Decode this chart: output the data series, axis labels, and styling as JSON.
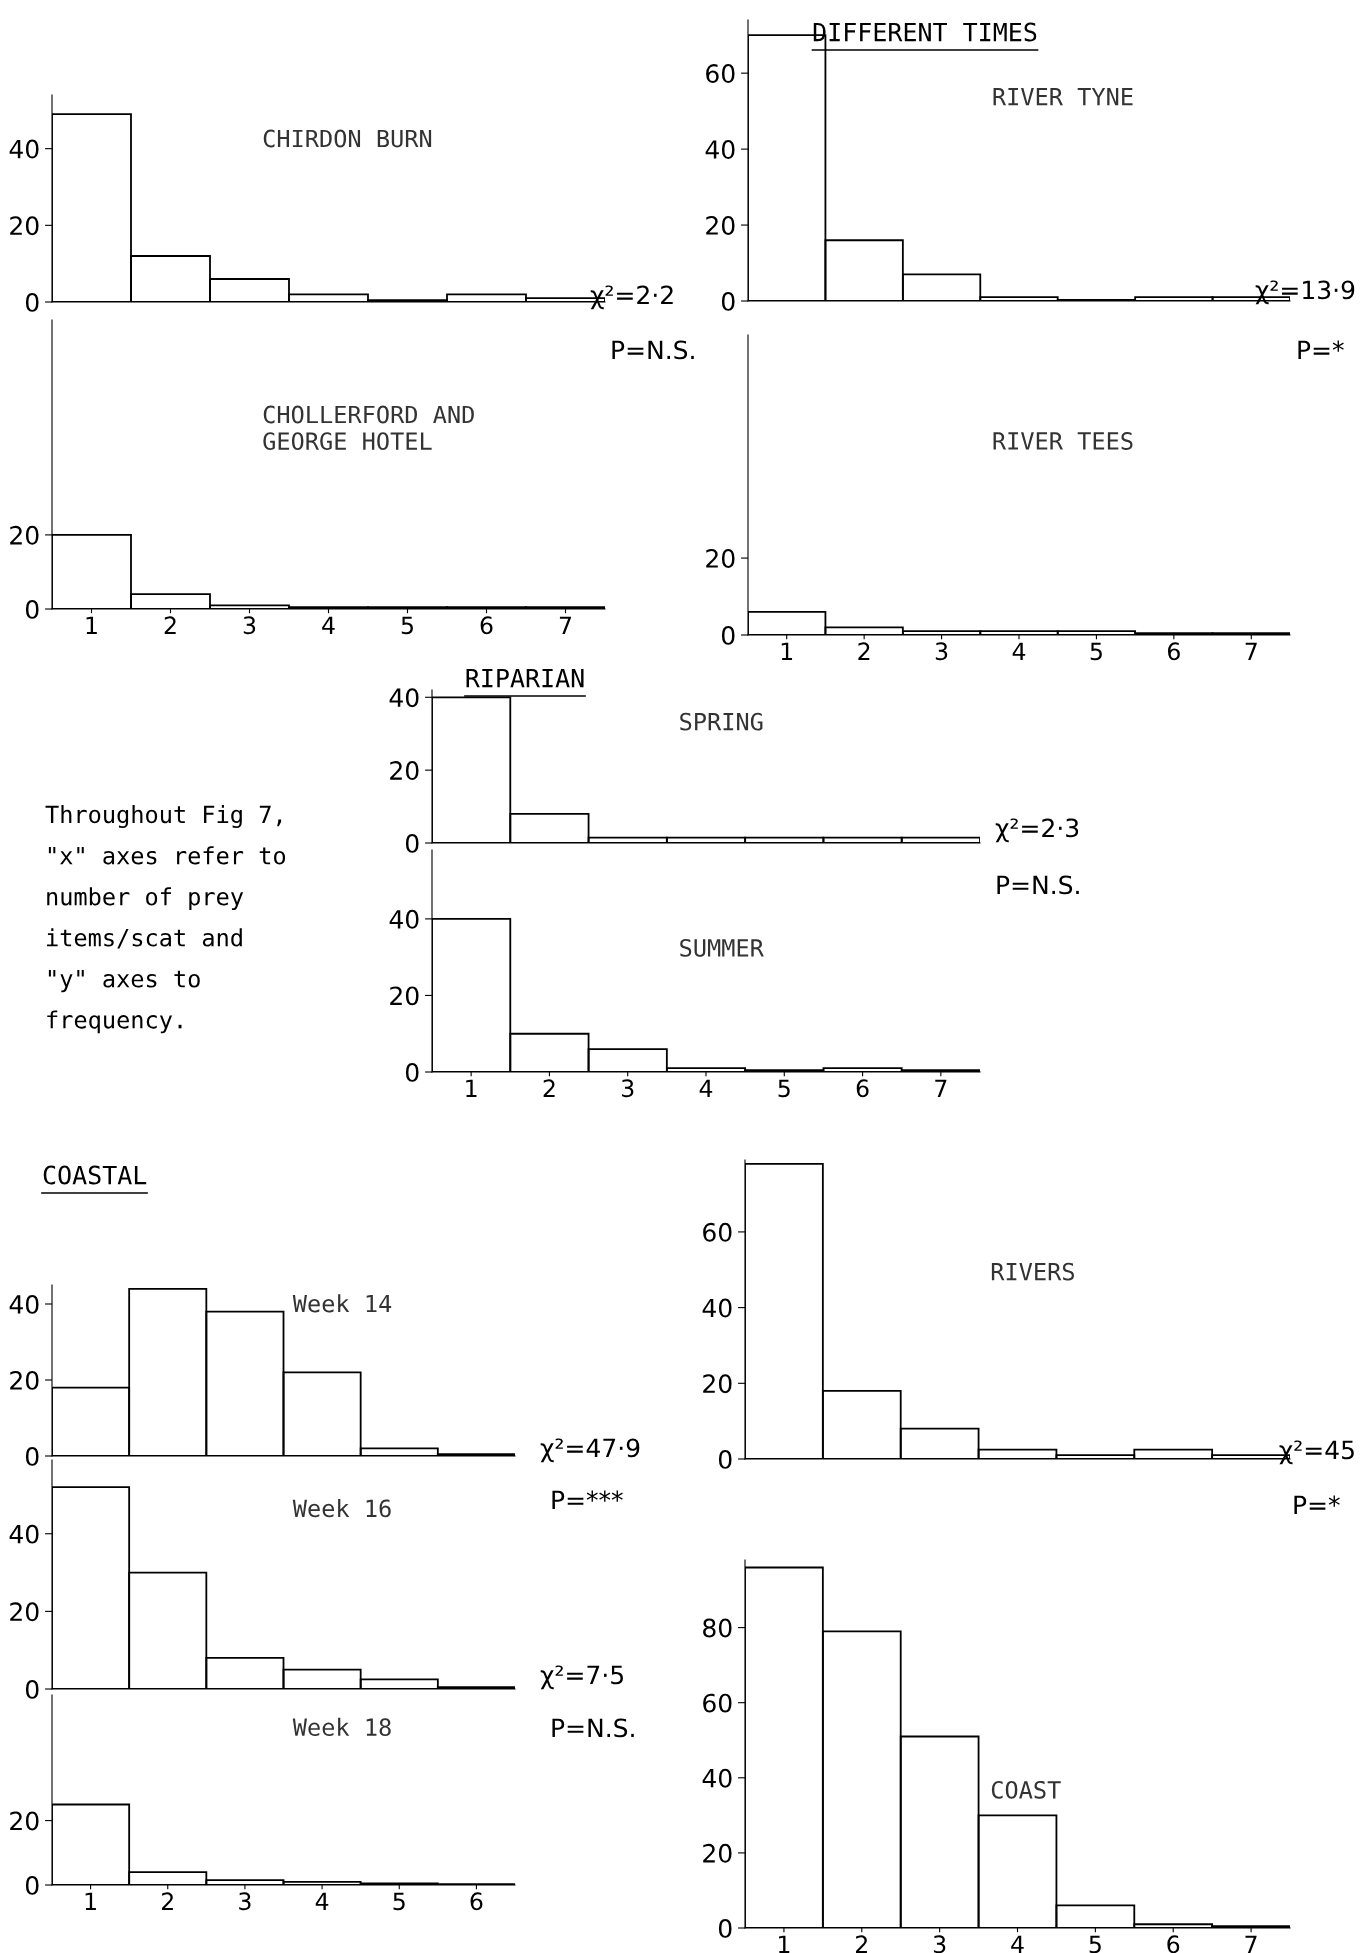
{
  "chart_data": [
    {
      "type": "bar",
      "title": "CHIRDON BURN",
      "categories": [
        "1",
        "2",
        "3",
        "4",
        "5",
        "6",
        "7"
      ],
      "values": [
        49,
        12,
        6,
        2,
        0.5,
        2,
        1
      ],
      "color": "#000000",
      "ylim": [
        0,
        54
      ],
      "yticks": [
        0,
        20,
        40
      ],
      "tick_labels": "y",
      "grid": false,
      "legend": false,
      "annotations": [
        "χ²=2·2",
        "P=N.S."
      ]
    },
    {
      "type": "bar",
      "title": "RIVER TYNE",
      "categories": [
        "1",
        "2",
        "3",
        "4",
        "5",
        "6",
        "7"
      ],
      "values": [
        70,
        16,
        7,
        1,
        0.3,
        1,
        1
      ],
      "color": "#000000",
      "ylim": [
        0,
        74
      ],
      "yticks": [
        0,
        20,
        40,
        60
      ],
      "tick_labels": "y",
      "grid": false,
      "legend": false,
      "annotations": [
        "DIFFERENT TIMES",
        "χ²=13·9",
        "P=*"
      ]
    },
    {
      "type": "bar",
      "title": "CHOLLERFORD AND\nGEORGE HOTEL",
      "categories": [
        "1",
        "2",
        "3",
        "4",
        "5",
        "6",
        "7"
      ],
      "values": [
        20,
        4,
        1,
        0.5,
        0.5,
        0.5,
        0.5
      ],
      "color": "#000000",
      "ylim": [
        0,
        78
      ],
      "yticks": [
        0,
        20
      ],
      "grid": false,
      "legend": false
    },
    {
      "type": "bar",
      "title": "RIVER TEES",
      "categories": [
        "1",
        "2",
        "3",
        "4",
        "5",
        "6",
        "7"
      ],
      "values": [
        6,
        2,
        1,
        1,
        1,
        0.5,
        0.5
      ],
      "color": "#000000",
      "ylim": [
        0,
        78
      ],
      "yticks": [
        0,
        20
      ],
      "grid": false,
      "legend": false
    },
    {
      "type": "bar",
      "title": "SPRING",
      "categories": [
        "1",
        "2",
        "3",
        "4",
        "5",
        "6",
        "7"
      ],
      "values": [
        40,
        8,
        1.5,
        1.5,
        1.5,
        1.5,
        1.5
      ],
      "color": "#000000",
      "ylim": [
        0,
        42
      ],
      "yticks": [
        0,
        20,
        40
      ],
      "tick_labels": "y",
      "grid": false,
      "legend": false,
      "annotations": [
        "RIPARIAN",
        "χ²=2·3",
        "P=N.S.",
        "Throughout Fig 7,\n\"x\" axes refer to\nnumber of prey\nitems/scat and\n\"y\" axes to\nfrequency."
      ]
    },
    {
      "type": "bar",
      "title": "SUMMER",
      "categories": [
        "1",
        "2",
        "3",
        "4",
        "5",
        "6",
        "7"
      ],
      "values": [
        40,
        10,
        6,
        1,
        0.5,
        1,
        0.5
      ],
      "color": "#000000",
      "ylim": [
        0,
        58
      ],
      "yticks": [
        0,
        20,
        40
      ],
      "grid": false,
      "legend": false
    },
    {
      "type": "bar",
      "title": "RIVERS",
      "categories": [
        "1",
        "2",
        "3",
        "4",
        "5",
        "6",
        "7"
      ],
      "values": [
        78,
        18,
        8,
        2.5,
        1,
        2.5,
        1
      ],
      "color": "#000000",
      "ylim": [
        0,
        79
      ],
      "yticks": [
        0,
        20,
        40,
        60
      ],
      "tick_labels": "y",
      "grid": false,
      "legend": false,
      "annotations": [
        "χ²=45",
        "P=*"
      ]
    },
    {
      "type": "bar",
      "title": "Week 14",
      "categories": [
        "1",
        "2",
        "3",
        "4",
        "5",
        "6"
      ],
      "values": [
        18,
        44,
        38,
        22,
        2,
        0.5
      ],
      "color": "#000000",
      "ylim": [
        0,
        45
      ],
      "yticks": [
        0,
        20,
        40
      ],
      "tick_labels": "y",
      "grid": false,
      "legend": false,
      "annotations": [
        "COASTAL",
        "χ²=47·9",
        "P=***"
      ]
    },
    {
      "type": "bar",
      "title": "Week 16",
      "categories": [
        "1",
        "2",
        "3",
        "4",
        "5",
        "6"
      ],
      "values": [
        52,
        30,
        8,
        5,
        2.5,
        0.5
      ],
      "color": "#000000",
      "ylim": [
        0,
        59
      ],
      "yticks": [
        0,
        20,
        40
      ],
      "tick_labels": "y",
      "grid": false,
      "legend": false,
      "annotations": [
        "χ²=7·5",
        "P=N.S."
      ]
    },
    {
      "type": "bar",
      "title": "COAST",
      "categories": [
        "1",
        "2",
        "3",
        "4",
        "5",
        "6",
        "7"
      ],
      "values": [
        96,
        79,
        51,
        30,
        6,
        1,
        0.5
      ],
      "color": "#000000",
      "ylim": [
        0,
        98
      ],
      "yticks": [
        0,
        20,
        40,
        60,
        80
      ],
      "grid": false,
      "legend": false
    },
    {
      "type": "bar",
      "title": "Week 18",
      "categories": [
        "1",
        "2",
        "3",
        "4",
        "5",
        "6"
      ],
      "values": [
        25,
        4,
        1.5,
        1,
        0.5,
        0.3
      ],
      "color": "#000000",
      "ylim": [
        0,
        59
      ],
      "yticks": [
        0,
        20
      ],
      "grid": false,
      "legend": false
    }
  ]
}
